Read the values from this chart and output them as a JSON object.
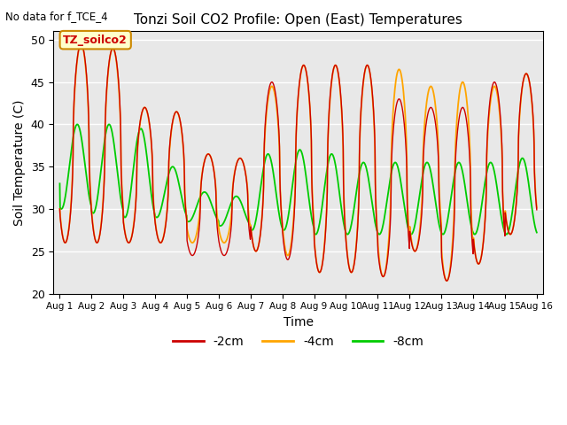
{
  "title": "Tonzi Soil CO2 Profile: Open (East) Temperatures",
  "xlabel": "Time",
  "ylabel": "Soil Temperature (C)",
  "top_left_text": "No data for f_TCE_4",
  "legend_box_text": "TZ_soilco2",
  "ylim": [
    20,
    51
  ],
  "yticks": [
    20,
    25,
    30,
    35,
    40,
    45,
    50
  ],
  "colors": {
    "neg2cm": "#cc0000",
    "neg4cm": "#ffa500",
    "neg8cm": "#00cc00"
  },
  "labels": [
    "-2cm",
    "-4cm",
    "-8cm"
  ],
  "plot_bg_color": "#e8e8e8",
  "n_days": 15,
  "pts_per_day": 96
}
